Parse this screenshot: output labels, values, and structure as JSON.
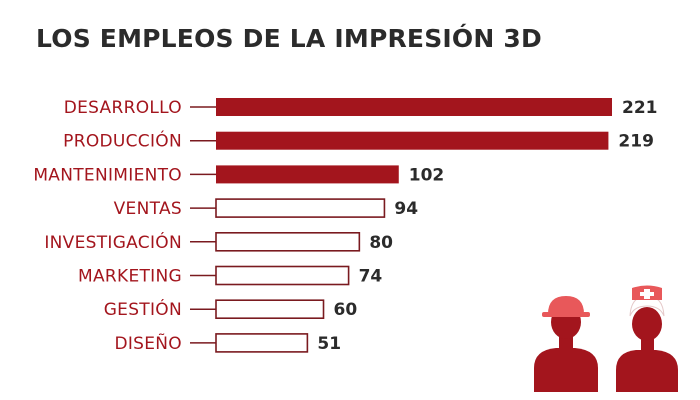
{
  "chart_data": {
    "type": "bar",
    "orientation": "horizontal",
    "title": "LOS EMPLEOS DE LA IMPRESIÓN 3D",
    "categories": [
      "DESARROLLO",
      "PRODUCCIÓN",
      "MANTENIMIENTO",
      "VENTAS",
      "INVESTIGACIÓN",
      "MARKETING",
      "GESTIÓN",
      "DISEÑO"
    ],
    "values": [
      221,
      219,
      102,
      94,
      80,
      74,
      60,
      51
    ],
    "value_labels": [
      "221",
      "219",
      "102",
      "94",
      "80",
      "74",
      "60",
      "51"
    ],
    "highlighted": [
      true,
      true,
      true,
      false,
      false,
      false,
      false,
      false
    ],
    "xlim": [
      0,
      221
    ],
    "grid": false,
    "legend": "none",
    "xlabel": "",
    "ylabel": ""
  },
  "colors": {
    "accent": "#a3151d",
    "highlight_bar": "#a3151d",
    "outline_bar": "#7a1a1f",
    "label_text": "#a3151d",
    "value_text": "#2b2b2b",
    "title_text": "#2b2b2b",
    "helmet": "#e8585a",
    "cap": "#e8585a"
  },
  "illustration": {
    "icons": [
      "construction-worker-icon",
      "nurse-icon"
    ]
  }
}
